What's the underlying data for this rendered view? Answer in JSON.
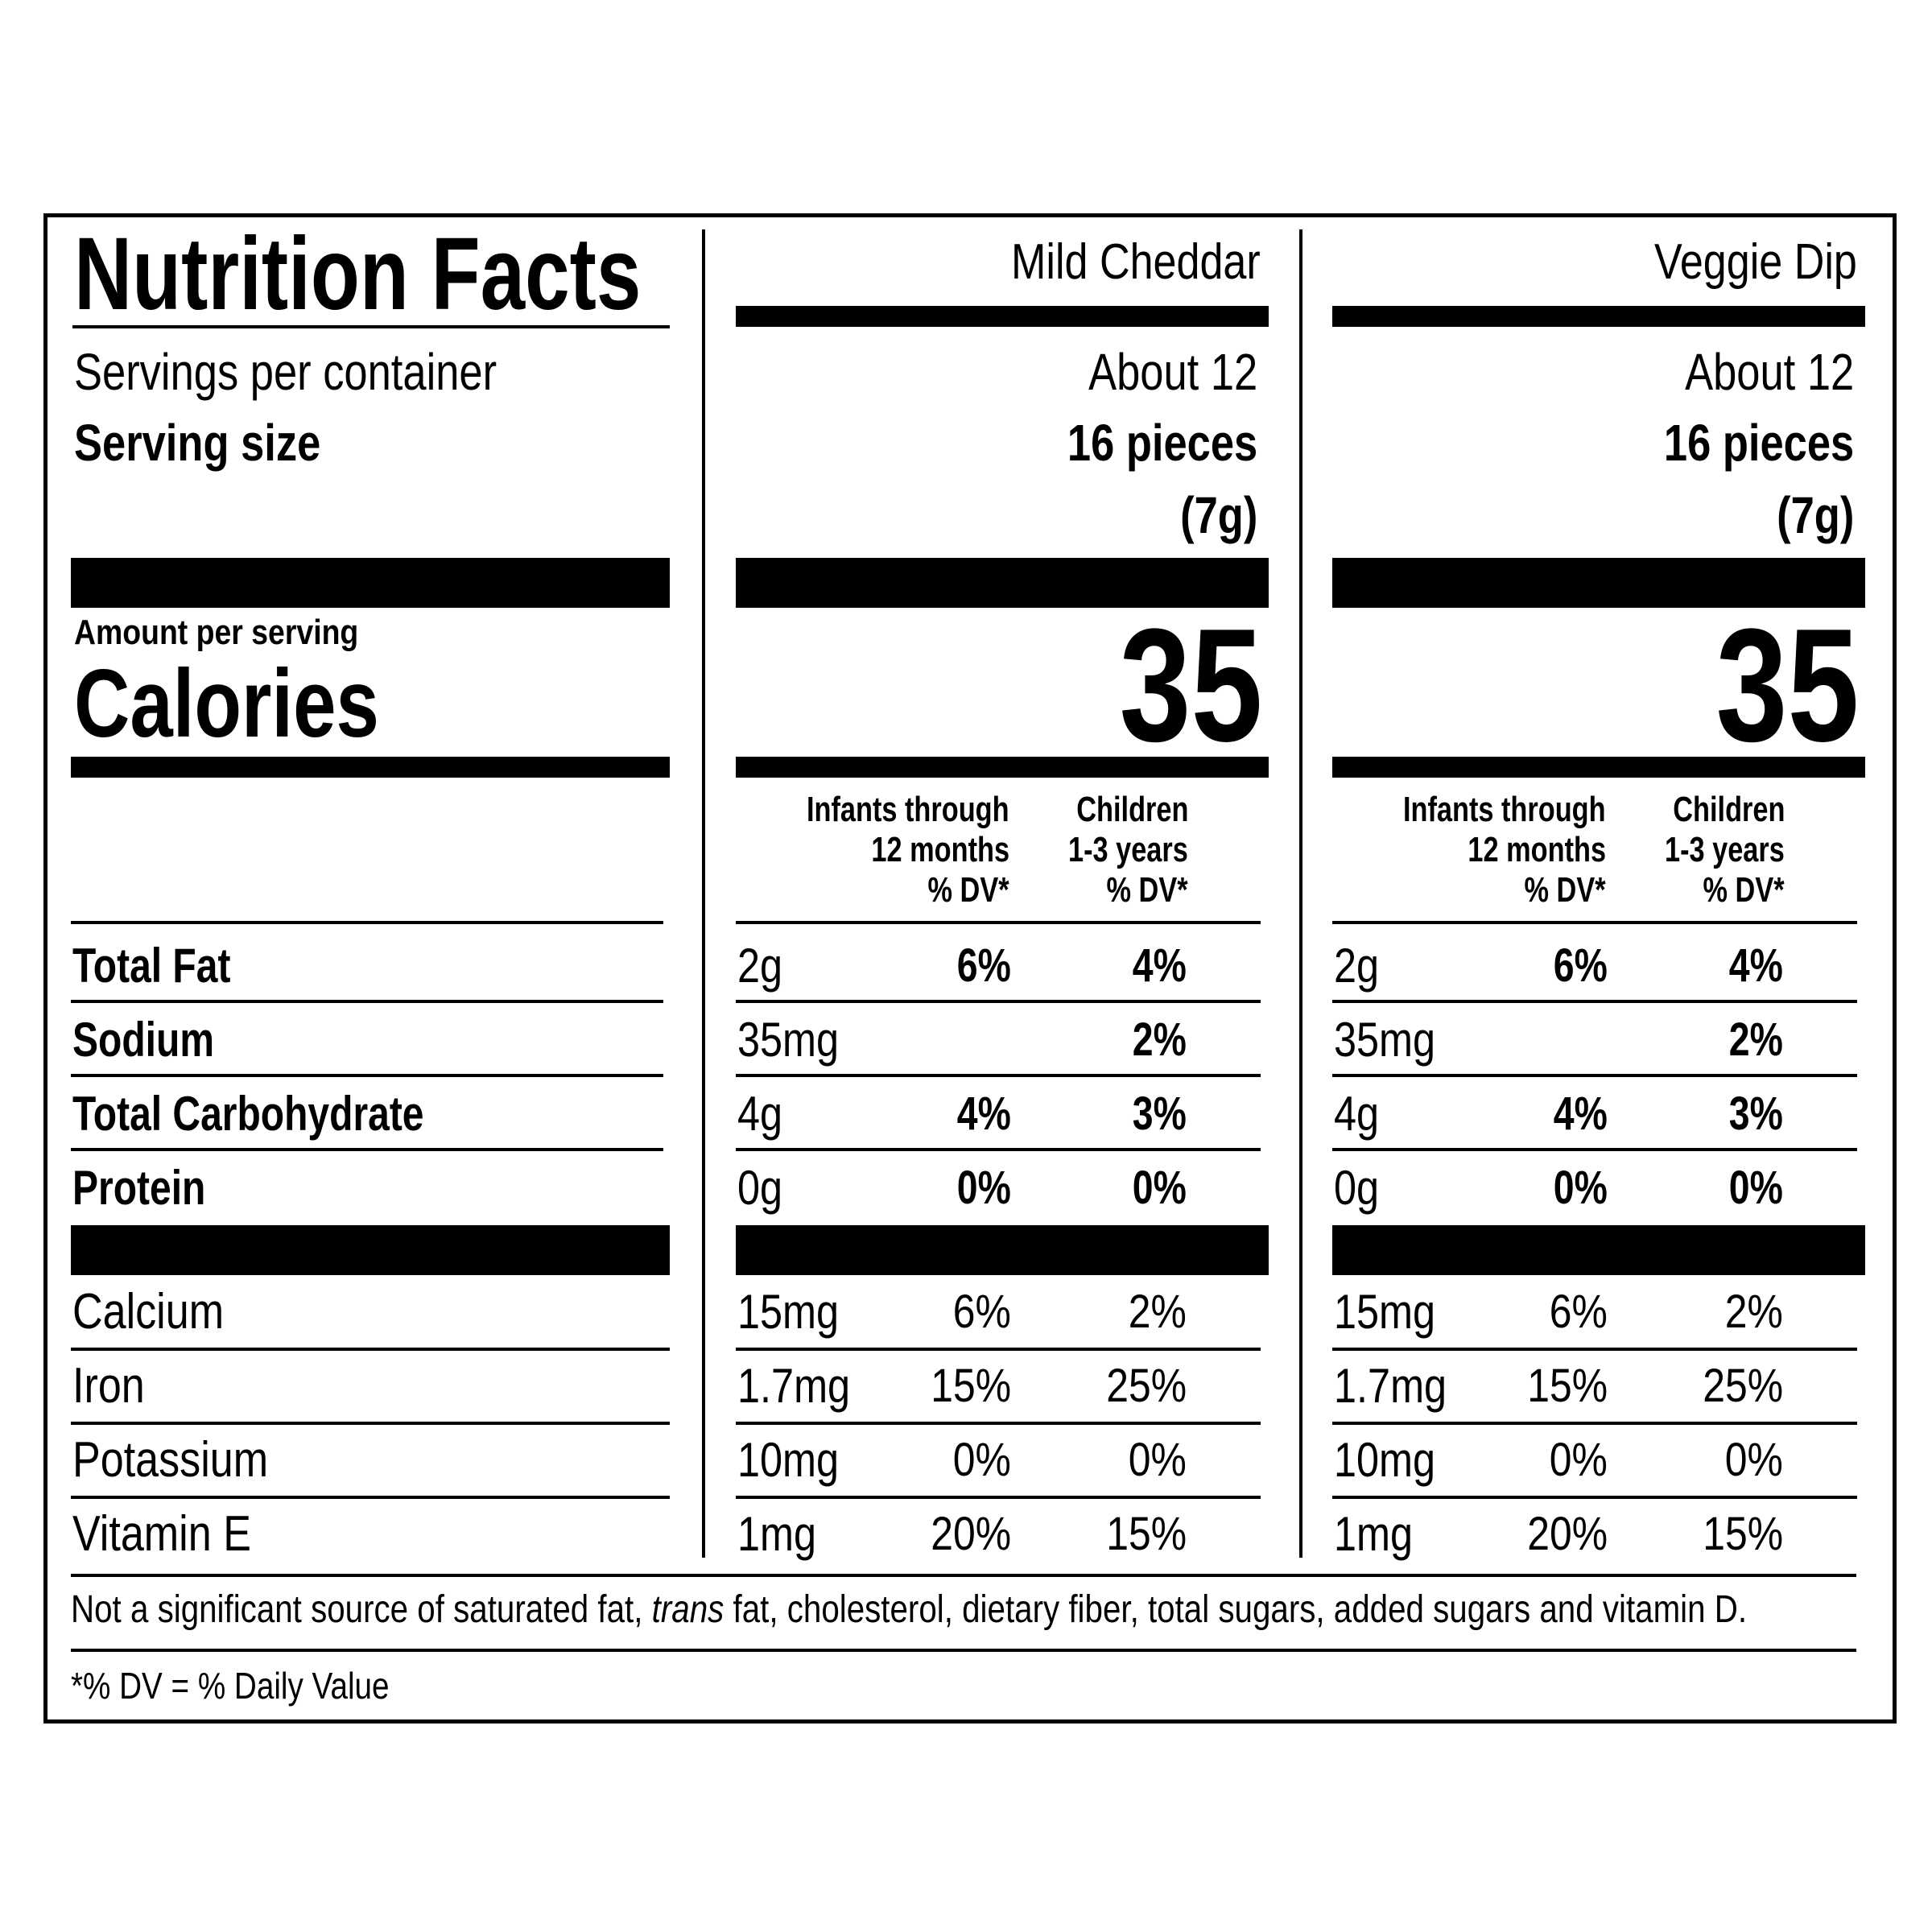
{
  "title": "Nutrition Facts",
  "servings_label": "Servings per container",
  "serving_size_label": "Serving size",
  "amount_per_serving": "Amount per serving",
  "calories_label": "Calories",
  "products": [
    {
      "name": "Mild Cheddar",
      "servings": "About 12",
      "serving_size_1": "16 pieces",
      "serving_size_2": "(7g)",
      "calories": "35",
      "dv_infants": [
        "Infants through",
        "12 months",
        "% DV*"
      ],
      "dv_children": [
        "Children",
        "1-3 years",
        "% DV*"
      ],
      "rows": [
        {
          "amount": "2g",
          "infants": "6%",
          "children": "4%"
        },
        {
          "amount": "35mg",
          "infants": "",
          "children": "2%"
        },
        {
          "amount": "4g",
          "infants": "4%",
          "children": "3%"
        },
        {
          "amount": "0g",
          "infants": "0%",
          "children": "0%"
        },
        {
          "amount": "15mg",
          "infants": "6%",
          "children": "2%"
        },
        {
          "amount": "1.7mg",
          "infants": "15%",
          "children": "25%"
        },
        {
          "amount": "10mg",
          "infants": "0%",
          "children": "0%"
        },
        {
          "amount": "1mg",
          "infants": "20%",
          "children": "15%"
        }
      ]
    },
    {
      "name": "Veggie Dip",
      "servings": "About 12",
      "serving_size_1": "16 pieces",
      "serving_size_2": "(7g)",
      "calories": "35",
      "dv_infants": [
        "Infants through",
        "12 months",
        "% DV*"
      ],
      "dv_children": [
        "Children",
        "1-3 years",
        "% DV*"
      ],
      "rows": [
        {
          "amount": "2g",
          "infants": "6%",
          "children": "4%"
        },
        {
          "amount": "35mg",
          "infants": "",
          "children": "2%"
        },
        {
          "amount": "4g",
          "infants": "4%",
          "children": "3%"
        },
        {
          "amount": "0g",
          "infants": "0%",
          "children": "0%"
        },
        {
          "amount": "15mg",
          "infants": "6%",
          "children": "2%"
        },
        {
          "amount": "1.7mg",
          "infants": "15%",
          "children": "25%"
        },
        {
          "amount": "10mg",
          "infants": "0%",
          "children": "0%"
        },
        {
          "amount": "1mg",
          "infants": "20%",
          "children": "15%"
        }
      ]
    }
  ],
  "nutrients": [
    "Total Fat",
    "Sodium",
    "Total Carbohydrate",
    "Protein",
    "Calcium",
    "Iron",
    "Potassium",
    "Vitamin E"
  ],
  "footnote_before_trans": "Not a significant source of saturated fat, ",
  "footnote_trans": "trans",
  "footnote_after_trans": " fat, cholesterol, dietary fiber, total sugars, added sugars and vitamin D.",
  "dv_note": "*% DV = % Daily Value"
}
